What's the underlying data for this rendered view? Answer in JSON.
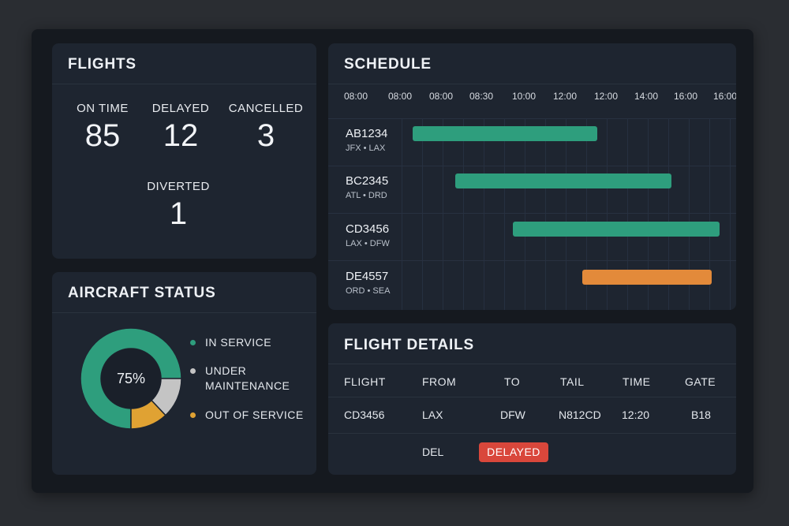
{
  "flights": {
    "title": "FLIGHTS",
    "stats": [
      {
        "label": "ON TIME",
        "value": "85"
      },
      {
        "label": "DELAYED",
        "value": "12"
      },
      {
        "label": "CANCELLED",
        "value": "3"
      },
      {
        "label": "DIVERTED",
        "value": "1"
      }
    ]
  },
  "aircraft": {
    "title": "AIRCRAFT STATUS",
    "center_label": "75%",
    "segments": [
      {
        "label": "IN SERVICE",
        "percent": 75,
        "color": "#2e9e7d"
      },
      {
        "label": "UNDER MAINTENANCE",
        "percent": 13,
        "color": "#c4c4c4"
      },
      {
        "label": "OUT OF SERVICE",
        "percent": 12,
        "color": "#e0a233"
      }
    ]
  },
  "schedule": {
    "title": "SCHEDULE",
    "ticks": [
      "08:00",
      "08:00",
      "08:00",
      "08:30",
      "10:00",
      "12:00",
      "12:00",
      "14:00",
      "16:00",
      "16:00"
    ],
    "rows": [
      {
        "code": "AB1234",
        "route": "JFX • LAX",
        "color": "#2e9e7d"
      },
      {
        "code": "BC2345",
        "route": "ATL • DRD",
        "color": "#2e9e7d"
      },
      {
        "code": "CD3456",
        "route": "LAX • DFW",
        "color": "#2e9e7d"
      },
      {
        "code": "DE4557",
        "route": "ORD • SEA",
        "color": "#e38a3a"
      }
    ]
  },
  "details": {
    "title": "FLIGHT DETAILS",
    "headers": [
      "FLIGHT",
      "FROM",
      "TO",
      "TAIL",
      "TIME",
      "GATE"
    ],
    "row": [
      "CD3456",
      "LAX",
      "DFW",
      "N812CD",
      "12:20",
      "B18"
    ],
    "status_from": "DEL",
    "status_badge": "DELAYED",
    "badge_color": "#d9473b"
  }
}
